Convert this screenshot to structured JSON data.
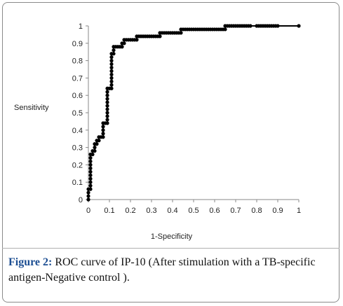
{
  "figure": {
    "label": "Figure 2:",
    "caption": "ROC curve of IP-10 (After stimulation with a TB-specific antigen-Negative control )."
  },
  "chart_data": {
    "type": "line",
    "xlabel": "1-Specificity",
    "ylabel": "Sensitivity",
    "xlim": [
      0,
      1
    ],
    "ylim": [
      0,
      1
    ],
    "x_ticks": [
      "0",
      "0.1",
      "0.2",
      "0.3",
      "0.4",
      "0.5",
      "0.6",
      "0.7",
      "0.8",
      "0.9",
      "1"
    ],
    "y_ticks": [
      "0",
      "0.1",
      "0.2",
      "0.3",
      "0.4",
      "0.5",
      "0.6",
      "0.7",
      "0.8",
      "0.9",
      "1"
    ],
    "grid": false,
    "legend": "none",
    "color": "#000000",
    "marker": "circle",
    "points": [
      [
        0,
        0
      ],
      [
        0,
        0.02
      ],
      [
        0,
        0.04
      ],
      [
        0,
        0.06
      ],
      [
        0.01,
        0.06
      ],
      [
        0.01,
        0.08
      ],
      [
        0.01,
        0.1
      ],
      [
        0.01,
        0.12
      ],
      [
        0.01,
        0.14
      ],
      [
        0.01,
        0.16
      ],
      [
        0.01,
        0.18
      ],
      [
        0.01,
        0.2
      ],
      [
        0.01,
        0.22
      ],
      [
        0.01,
        0.24
      ],
      [
        0.01,
        0.26
      ],
      [
        0.02,
        0.26
      ],
      [
        0.02,
        0.28
      ],
      [
        0.03,
        0.28
      ],
      [
        0.03,
        0.3
      ],
      [
        0.03,
        0.32
      ],
      [
        0.04,
        0.32
      ],
      [
        0.04,
        0.34
      ],
      [
        0.05,
        0.34
      ],
      [
        0.05,
        0.36
      ],
      [
        0.06,
        0.36
      ],
      [
        0.07,
        0.36
      ],
      [
        0.07,
        0.38
      ],
      [
        0.07,
        0.4
      ],
      [
        0.07,
        0.42
      ],
      [
        0.07,
        0.44
      ],
      [
        0.08,
        0.44
      ],
      [
        0.09,
        0.44
      ],
      [
        0.09,
        0.46
      ],
      [
        0.09,
        0.48
      ],
      [
        0.09,
        0.5
      ],
      [
        0.09,
        0.52
      ],
      [
        0.09,
        0.54
      ],
      [
        0.09,
        0.56
      ],
      [
        0.09,
        0.58
      ],
      [
        0.09,
        0.6
      ],
      [
        0.09,
        0.62
      ],
      [
        0.09,
        0.64
      ],
      [
        0.1,
        0.64
      ],
      [
        0.11,
        0.64
      ],
      [
        0.11,
        0.66
      ],
      [
        0.11,
        0.68
      ],
      [
        0.11,
        0.7
      ],
      [
        0.11,
        0.72
      ],
      [
        0.11,
        0.74
      ],
      [
        0.11,
        0.76
      ],
      [
        0.11,
        0.78
      ],
      [
        0.11,
        0.8
      ],
      [
        0.11,
        0.82
      ],
      [
        0.11,
        0.84
      ],
      [
        0.12,
        0.84
      ],
      [
        0.12,
        0.86
      ],
      [
        0.12,
        0.88
      ],
      [
        0.13,
        0.88
      ],
      [
        0.14,
        0.88
      ],
      [
        0.15,
        0.88
      ],
      [
        0.16,
        0.88
      ],
      [
        0.16,
        0.9
      ],
      [
        0.17,
        0.9
      ],
      [
        0.17,
        0.92
      ],
      [
        0.18,
        0.92
      ],
      [
        0.19,
        0.92
      ],
      [
        0.2,
        0.92
      ],
      [
        0.21,
        0.92
      ],
      [
        0.22,
        0.92
      ],
      [
        0.23,
        0.92
      ],
      [
        0.23,
        0.94
      ],
      [
        0.24,
        0.94
      ],
      [
        0.25,
        0.94
      ],
      [
        0.26,
        0.94
      ],
      [
        0.27,
        0.94
      ],
      [
        0.28,
        0.94
      ],
      [
        0.29,
        0.94
      ],
      [
        0.3,
        0.94
      ],
      [
        0.31,
        0.94
      ],
      [
        0.32,
        0.94
      ],
      [
        0.33,
        0.94
      ],
      [
        0.34,
        0.94
      ],
      [
        0.34,
        0.96
      ],
      [
        0.35,
        0.96
      ],
      [
        0.36,
        0.96
      ],
      [
        0.37,
        0.96
      ],
      [
        0.38,
        0.96
      ],
      [
        0.39,
        0.96
      ],
      [
        0.4,
        0.96
      ],
      [
        0.41,
        0.96
      ],
      [
        0.42,
        0.96
      ],
      [
        0.43,
        0.96
      ],
      [
        0.44,
        0.96
      ],
      [
        0.44,
        0.98
      ],
      [
        0.45,
        0.98
      ],
      [
        0.46,
        0.98
      ],
      [
        0.47,
        0.98
      ],
      [
        0.48,
        0.98
      ],
      [
        0.49,
        0.98
      ],
      [
        0.5,
        0.98
      ],
      [
        0.51,
        0.98
      ],
      [
        0.52,
        0.98
      ],
      [
        0.53,
        0.98
      ],
      [
        0.54,
        0.98
      ],
      [
        0.55,
        0.98
      ],
      [
        0.56,
        0.98
      ],
      [
        0.57,
        0.98
      ],
      [
        0.58,
        0.98
      ],
      [
        0.59,
        0.98
      ],
      [
        0.6,
        0.98
      ],
      [
        0.61,
        0.98
      ],
      [
        0.62,
        0.98
      ],
      [
        0.63,
        0.98
      ],
      [
        0.64,
        0.98
      ],
      [
        0.65,
        0.98
      ],
      [
        0.65,
        1.0
      ],
      [
        0.66,
        1.0
      ],
      [
        0.67,
        1.0
      ],
      [
        0.68,
        1.0
      ],
      [
        0.69,
        1.0
      ],
      [
        0.7,
        1.0
      ],
      [
        0.71,
        1.0
      ],
      [
        0.72,
        1.0
      ],
      [
        0.73,
        1.0
      ],
      [
        0.74,
        1.0
      ],
      [
        0.75,
        1.0
      ],
      [
        0.76,
        1.0
      ],
      [
        0.77,
        1.0
      ],
      [
        0.8,
        1.0
      ],
      [
        0.81,
        1.0
      ],
      [
        0.82,
        1.0
      ],
      [
        0.83,
        1.0
      ],
      [
        0.84,
        1.0
      ],
      [
        0.85,
        1.0
      ],
      [
        0.86,
        1.0
      ],
      [
        0.87,
        1.0
      ],
      [
        0.88,
        1.0
      ],
      [
        0.89,
        1.0
      ],
      [
        0.9,
        1.0
      ],
      [
        1.0,
        1.0
      ]
    ]
  }
}
